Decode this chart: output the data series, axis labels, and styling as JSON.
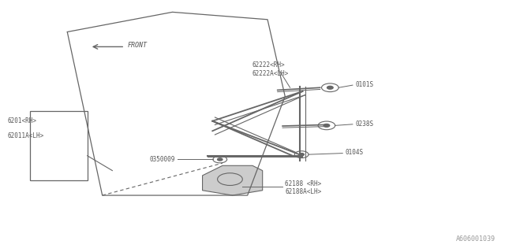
{
  "bg_color": "#ffffff",
  "line_color": "#666666",
  "text_color": "#555555",
  "fig_width": 6.4,
  "fig_height": 3.2,
  "dpi": 100,
  "watermark": "A606001039",
  "labels": {
    "front": "FRONT",
    "part1a": "6201<RH>",
    "part1b": "62011A<LH>",
    "part2a": "62222<RH>",
    "part2b": "62222A<LH>",
    "part3": "0101S",
    "part4": "0238S",
    "part5": "0350009",
    "part6": "0104S",
    "part7a": "62188 <RH>",
    "part7b": "62188A<LH>"
  }
}
